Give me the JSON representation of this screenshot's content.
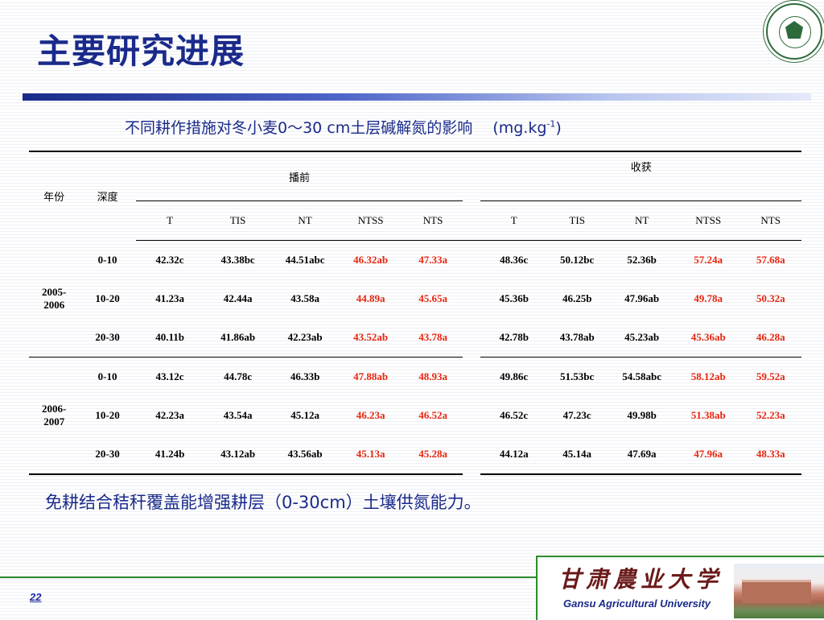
{
  "slide": {
    "title": "主要研究进展",
    "page_number": "22"
  },
  "caption": {
    "text": "不同耕作措施对冬小麦0～30 cm土层碱解氮的影响　 (mg.kg",
    "sup": "-1",
    "close": ")"
  },
  "table": {
    "header": {
      "year": "年份",
      "depth": "深度",
      "group_before": "播前",
      "group_harvest": "收获",
      "treatments": [
        "T",
        "TIS",
        "NT",
        "NTSS",
        "NTS"
      ]
    },
    "groups": [
      {
        "year": "2005-2006",
        "rows": [
          {
            "depth": "0-10",
            "before": [
              "42.32c",
              "43.38bc",
              "44.51abc",
              "46.32ab",
              "47.33a"
            ],
            "harvest": [
              "48.36c",
              "50.12bc",
              "52.36b",
              "57.24a",
              "57.68a"
            ]
          },
          {
            "depth": "10-20",
            "before": [
              "41.23a",
              "42.44a",
              "43.58a",
              "44.89a",
              "45.65a"
            ],
            "harvest": [
              "45.36b",
              "46.25b",
              "47.96ab",
              "49.78a",
              "50.32a"
            ]
          },
          {
            "depth": "20-30",
            "before": [
              "40.11b",
              "41.86ab",
              "42.23ab",
              "43.52ab",
              "43.78a"
            ],
            "harvest": [
              "42.78b",
              "43.78ab",
              "45.23ab",
              "45.36ab",
              "46.28a"
            ]
          }
        ]
      },
      {
        "year": "2006-2007",
        "rows": [
          {
            "depth": "0-10",
            "before": [
              "43.12c",
              "44.78c",
              "46.33b",
              "47.88ab",
              "48.93a"
            ],
            "harvest": [
              "49.86c",
              "51.53bc",
              "54.58abc",
              "58.12ab",
              "59.52a"
            ]
          },
          {
            "depth": "10-20",
            "before": [
              "42.23a",
              "43.54a",
              "45.12a",
              "46.23a",
              "46.52a"
            ],
            "harvest": [
              "46.52c",
              "47.23c",
              "49.98b",
              "51.38ab",
              "52.23a"
            ]
          },
          {
            "depth": "20-30",
            "before": [
              "41.24b",
              "43.12ab",
              "43.56ab",
              "45.13a",
              "45.28a"
            ],
            "harvest": [
              "44.12a",
              "45.14a",
              "47.69a",
              "47.96a",
              "48.33a"
            ]
          }
        ]
      }
    ]
  },
  "conclusion": "免耕结合秸秆覆盖能增强耕层（0-30cm）土壤供氮能力。",
  "footer": {
    "calligraphy": "甘肃農业大学",
    "university": "Gansu Agricultural University"
  },
  "colors": {
    "title": "#1a2a8a",
    "highlight": "#e8250e",
    "footer_green": "#2e8a2a"
  }
}
